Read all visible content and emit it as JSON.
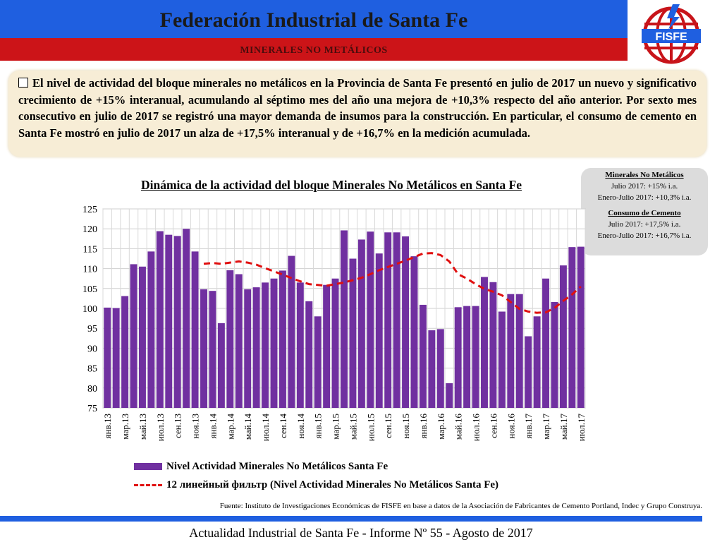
{
  "header": {
    "title": "Federación Industrial de Santa Fe",
    "subtitle": "MINERALES NO METÁLICOS",
    "logo_text": "FISFE",
    "colors": {
      "blue": "#1f5fe0",
      "red": "#cc1418"
    }
  },
  "summary": {
    "text": "El nivel de actividad del bloque minerales no metálicos en la Provincia de Santa Fe presentó en julio de 2017 un nuevo y significativo crecimiento de +15% interanual, acumulando al séptimo mes del año una mejora de +10,3% respecto del año anterior. Por sexto mes consecutivo en julio de 2017 se registró una mayor demanda de insumos para la construcción. En particular, el consumo de cemento en Santa Fe mostró en julio de 2017 un alza de +17,5% interanual y de +16,7% en la medición acumulada."
  },
  "info_box": {
    "block1_title": "Minerales No Metálicos",
    "block1_line1": "Julio 2017: +15% i.a.",
    "block1_line2": "Enero-Julio 2017: +10,3% i.a.",
    "block2_title": "Consumo de Cemento",
    "block2_line1": "Julio 2017: +17,5% i.a.",
    "block2_line2": "Enero-Julio 2017: +16,7% i.a."
  },
  "chart_data": {
    "type": "bar",
    "title": "Dinámica de la actividad del bloque Minerales No Metálicos en Santa Fe",
    "ylim": [
      75,
      125
    ],
    "yticks": [
      75,
      80,
      85,
      90,
      95,
      100,
      105,
      110,
      115,
      120,
      125
    ],
    "xtick_labels": [
      "янв.13",
      "мар.13",
      "май.13",
      "июл.13",
      "сен.13",
      "ноя.13",
      "янв.14",
      "мар.14",
      "май.14",
      "июл.14",
      "сен.14",
      "ноя.14",
      "янв.15",
      "мар.15",
      "май.15",
      "июл.15",
      "сен.15",
      "ноя.15",
      "янв.16",
      "мар.16",
      "май.16",
      "июл.16",
      "сен.16",
      "ноя.16",
      "янв.17",
      "мар.17",
      "май.17",
      "июл.17"
    ],
    "grid": true,
    "legend_placement": "bottom",
    "colors": {
      "bar": "#7030a0",
      "trend": "#e01010"
    },
    "series": [
      {
        "name": "Nivel Actividad Minerales No Metálicos Santa Fe",
        "kind": "bar",
        "values": [
          100.2,
          100.1,
          103.1,
          111.1,
          110.5,
          114.3,
          119.4,
          118.5,
          118.2,
          120.0,
          114.3,
          104.8,
          104.4,
          96.3,
          109.6,
          108.6,
          104.8,
          105.3,
          106.5,
          107.5,
          109.5,
          113.2,
          106.5,
          101.8,
          98.0,
          105.9,
          107.5,
          119.6,
          112.5,
          117.3,
          119.3,
          113.8,
          119.1,
          119.1,
          118.1,
          113.1,
          100.9,
          94.5,
          94.8,
          81.2,
          100.3,
          100.6,
          100.6,
          107.9,
          106.6,
          99.2,
          103.6,
          103.6,
          93.0,
          98.0,
          107.5,
          101.6,
          110.8,
          115.4,
          115.5
        ]
      },
      {
        "name": "12 линейный фильтр (Nivel Actividad Minerales No Metálicos Santa Fe)",
        "kind": "line",
        "values": [
          null,
          null,
          null,
          null,
          null,
          null,
          null,
          null,
          null,
          null,
          null,
          111.2,
          111.4,
          111.2,
          111.5,
          111.8,
          111.5,
          111.0,
          110.1,
          109.3,
          108.5,
          107.6,
          106.8,
          106.1,
          105.9,
          105.7,
          106.1,
          106.5,
          107.1,
          107.7,
          108.6,
          109.6,
          110.4,
          111.2,
          112.0,
          112.9,
          113.8,
          113.9,
          113.4,
          111.8,
          108.6,
          107.5,
          106.1,
          104.9,
          104.2,
          103.3,
          101.6,
          99.9,
          99.2,
          98.9,
          99.0,
          100.1,
          101.9,
          103.5,
          105.5
        ]
      }
    ]
  },
  "legend": {
    "bar_label": "Nivel Actividad Minerales No Metálicos Santa Fe",
    "line_label": "12 линейный фильтр (Nivel Actividad Minerales No Metálicos Santa Fe)"
  },
  "source": "Fuente: Instituto de Investigaciones Económicas de FISFE en base a datos de la Asociación de Fabricantes de Cemento Portland, Indec y Grupo Construya.",
  "footer": "Actualidad Industrial de Santa Fe - Informe Nº 55 - Agosto de 2017"
}
